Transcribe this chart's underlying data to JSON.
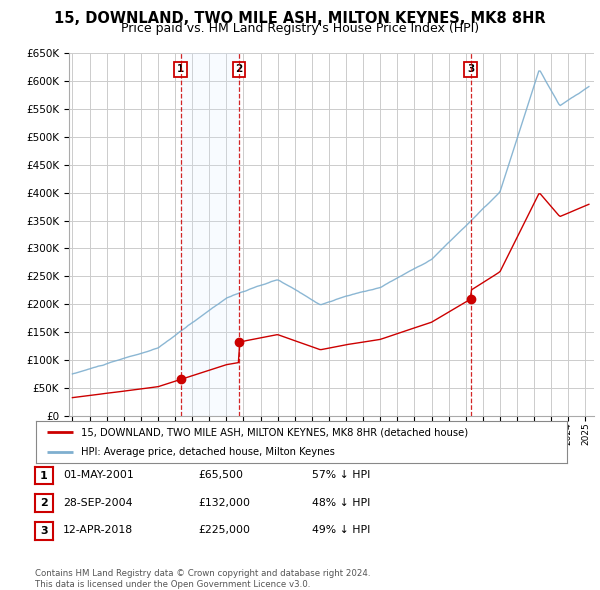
{
  "title": "15, DOWNLAND, TWO MILE ASH, MILTON KEYNES, MK8 8HR",
  "subtitle": "Price paid vs. HM Land Registry's House Price Index (HPI)",
  "title_fontsize": 10.5,
  "subtitle_fontsize": 9,
  "background_color": "#ffffff",
  "plot_bg_color": "#ffffff",
  "grid_color": "#cccccc",
  "red_line_color": "#cc0000",
  "blue_line_color": "#7fafcf",
  "shade_color": "#ddeeff",
  "vline_color": "#cc0000",
  "sale_markers": [
    {
      "date_num": 2001.33,
      "price": 65500,
      "label": "1"
    },
    {
      "date_num": 2004.75,
      "price": 132000,
      "label": "2"
    },
    {
      "date_num": 2018.28,
      "price": 225000,
      "label": "3"
    }
  ],
  "legend_entries": [
    "15, DOWNLAND, TWO MILE ASH, MILTON KEYNES, MK8 8HR (detached house)",
    "HPI: Average price, detached house, Milton Keynes"
  ],
  "table_rows": [
    [
      "1",
      "01-MAY-2001",
      "£65,500",
      "57% ↓ HPI"
    ],
    [
      "2",
      "28-SEP-2004",
      "£132,000",
      "48% ↓ HPI"
    ],
    [
      "3",
      "12-APR-2018",
      "£225,000",
      "49% ↓ HPI"
    ]
  ],
  "footnote": "Contains HM Land Registry data © Crown copyright and database right 2024.\nThis data is licensed under the Open Government Licence v3.0.",
  "ylim": [
    0,
    650000
  ],
  "yticks": [
    0,
    50000,
    100000,
    150000,
    200000,
    250000,
    300000,
    350000,
    400000,
    450000,
    500000,
    550000,
    600000,
    650000
  ],
  "xmin": 1994.8,
  "xmax": 2025.5
}
